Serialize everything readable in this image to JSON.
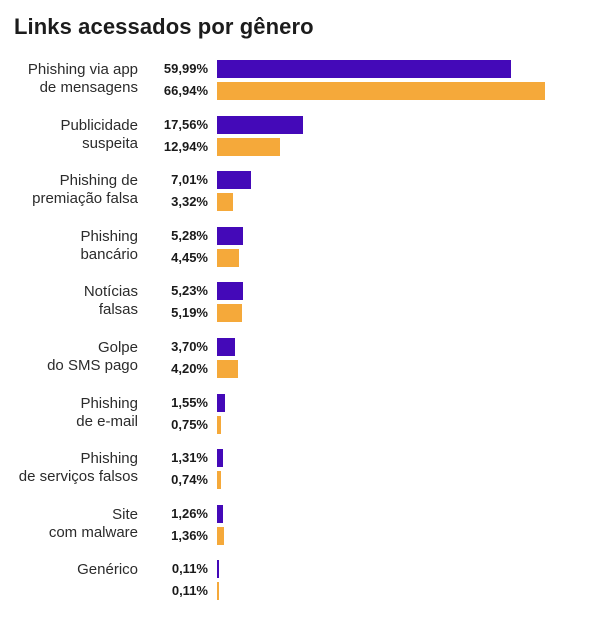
{
  "chart_data": {
    "type": "bar",
    "orientation": "horizontal",
    "title": "Links acessados por gênero",
    "categories": [
      [
        "Phishing via app",
        "de mensagens"
      ],
      [
        "Publicidade",
        "suspeita"
      ],
      [
        "Phishing de",
        "premiação falsa"
      ],
      [
        "Phishing",
        "bancário"
      ],
      [
        "Notícias",
        "falsas"
      ],
      [
        "Golpe",
        "do SMS pago"
      ],
      [
        "Phishing",
        "de e-mail"
      ],
      [
        "Phishing",
        "de serviços falsos"
      ],
      [
        "Site",
        "com malware"
      ],
      [
        "Genérico"
      ]
    ],
    "series": [
      {
        "values": [
          59.99,
          17.56,
          7.01,
          5.28,
          5.23,
          3.7,
          1.55,
          1.31,
          1.26,
          0.11
        ],
        "labels": [
          "59,99%",
          "17,56%",
          "7,01%",
          "5,28%",
          "5,23%",
          "3,70%",
          "1,55%",
          "1,31%",
          "1,26%",
          "0,11%"
        ],
        "color": "#4409b8"
      },
      {
        "values": [
          66.94,
          12.94,
          3.32,
          4.45,
          5.19,
          4.2,
          0.75,
          0.74,
          1.36,
          0.11
        ],
        "labels": [
          "66,94%",
          "12,94%",
          "3,32%",
          "4,45%",
          "5,19%",
          "4,20%",
          "0,75%",
          "0,74%",
          "1,36%",
          "0,11%"
        ],
        "color": "#f5a93a"
      }
    ],
    "xlim": [
      0,
      66.94
    ],
    "grid": false,
    "legend": "none"
  }
}
